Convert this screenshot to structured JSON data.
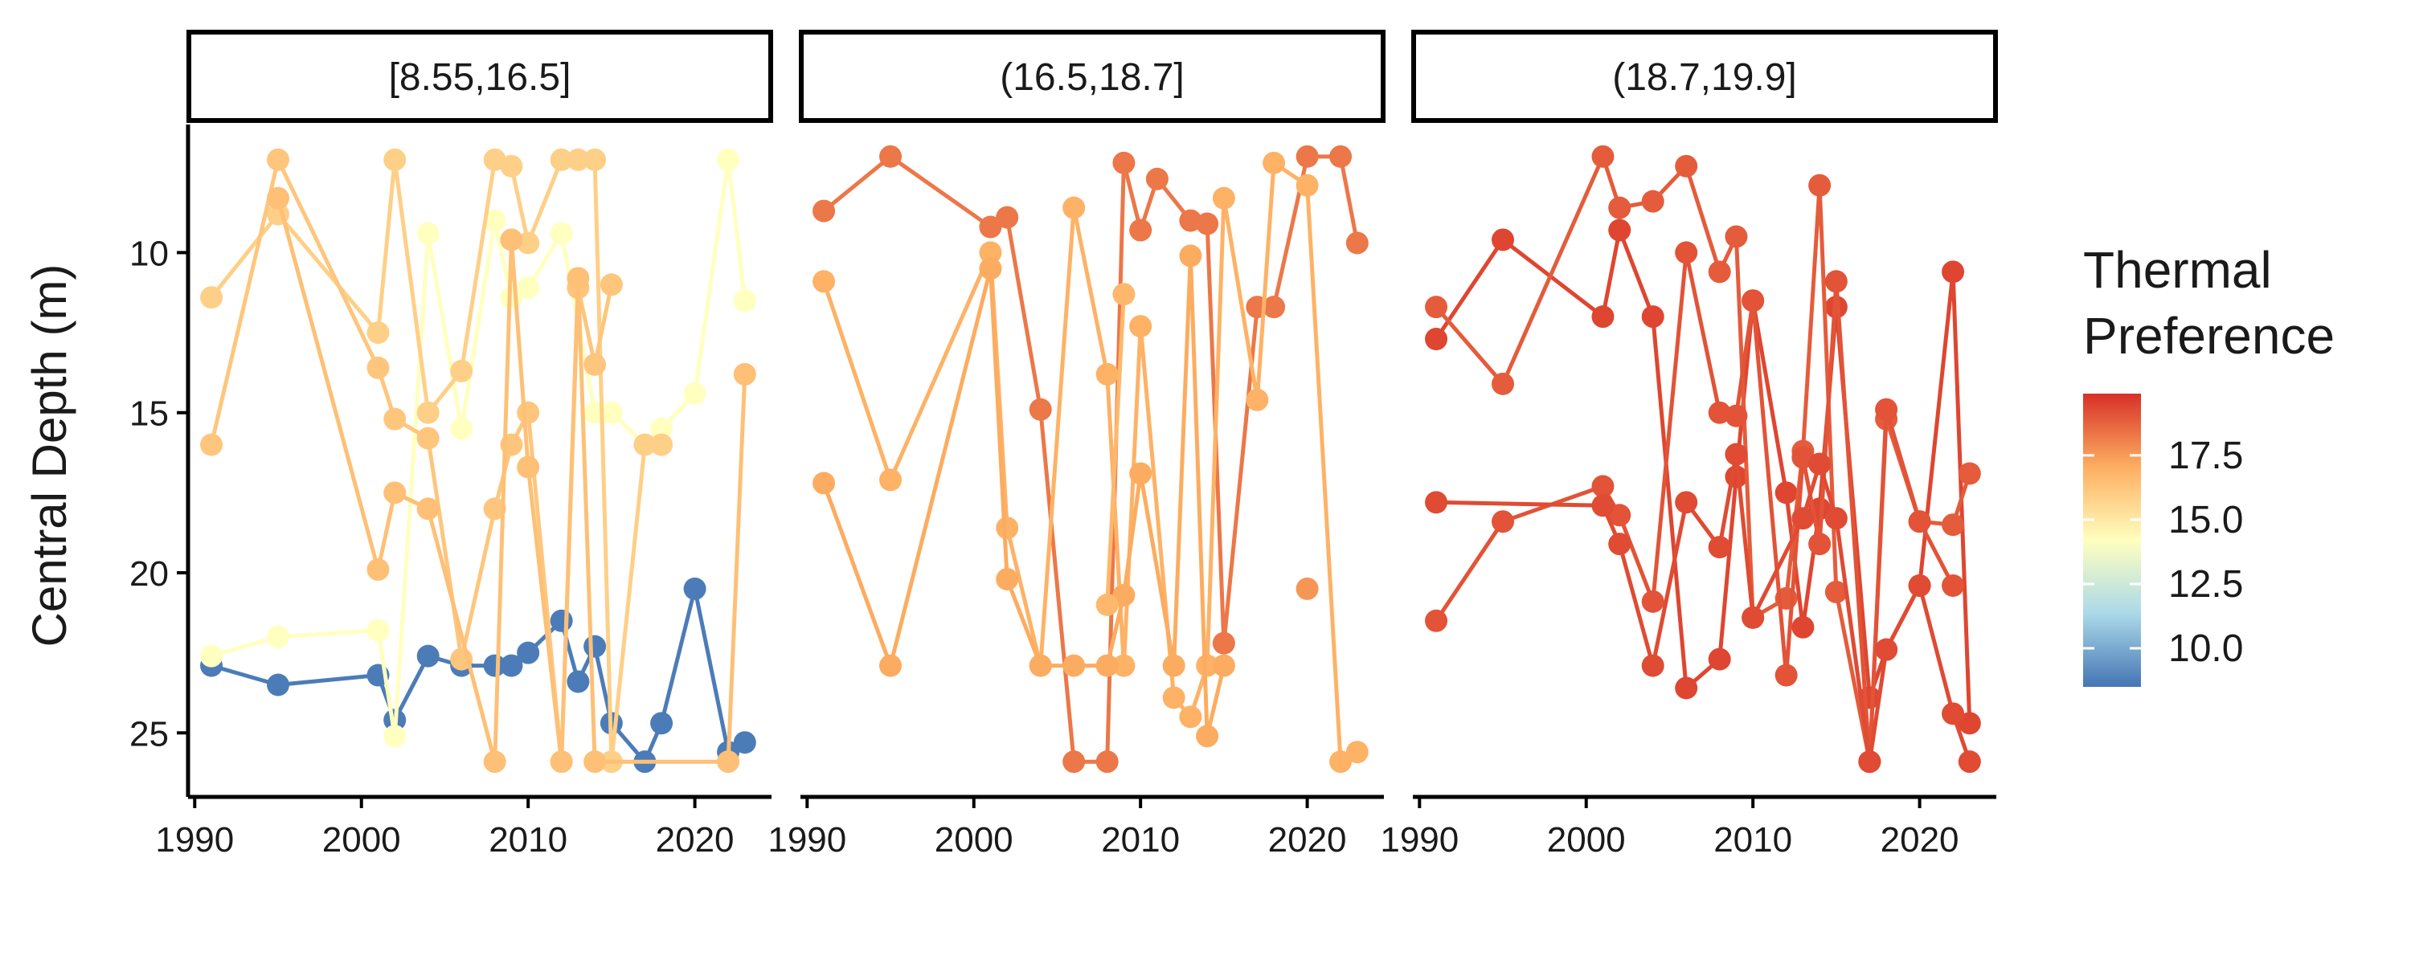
{
  "chart_data": {
    "type": "line",
    "xlabel": "",
    "ylabel": "Central Depth (m)",
    "y_reversed": true,
    "xlim": [
      1989.6,
      2024.6
    ],
    "ylim": [
      6.0,
      27.0
    ],
    "x_ticks": [
      1990,
      2000,
      2010,
      2020
    ],
    "x_tick_labels": [
      "1990",
      "2000",
      "2010",
      "2020"
    ],
    "y_ticks": [
      10,
      15,
      20,
      25
    ],
    "y_tick_labels": [
      "10",
      "15",
      "20",
      "25"
    ],
    "legend": {
      "title_lines": [
        "Thermal",
        "Preference"
      ],
      "type": "colorbar",
      "position": "right",
      "range": [
        8.5,
        19.9
      ],
      "ticks": [
        10.0,
        12.5,
        15.0,
        17.5
      ],
      "tick_labels": [
        "10.0",
        "12.5",
        "15.0",
        "17.5"
      ],
      "colors": [
        "#4575b4",
        "#abd9e9",
        "#ffffbf",
        "#fdae61",
        "#d73027"
      ]
    },
    "facets": [
      {
        "strip_label": "[8.55,16.5]",
        "series": [
          {
            "pref": 8.7,
            "x": [
              1991,
              1995,
              2001,
              2002,
              2004,
              2006,
              2008,
              2009,
              2010,
              2012,
              2013,
              2014,
              2015,
              2017,
              2018,
              2020,
              2022,
              2023
            ],
            "y": [
              22.9,
              23.5,
              23.2,
              24.6,
              22.6,
              22.9,
              22.9,
              22.9,
              22.5,
              21.5,
              23.4,
              22.3,
              24.7,
              25.9,
              24.7,
              20.5,
              25.6,
              25.3
            ]
          },
          {
            "pref": 14.2,
            "x": [
              1991,
              1995,
              2001,
              2002,
              2004,
              2006,
              2008,
              2009,
              2010,
              2012,
              2014,
              2015,
              2017,
              2018,
              2020,
              2022,
              2023
            ],
            "y": [
              22.6,
              22.0,
              21.8,
              25.1,
              9.4,
              15.5,
              9.0,
              11.4,
              11.1,
              9.4,
              15.0,
              15.0,
              16.0,
              15.5,
              14.4,
              7.1,
              11.5
            ]
          },
          {
            "pref": 15.9,
            "x": [
              1991,
              1995,
              2001,
              2002,
              2004,
              2006,
              2008,
              2009,
              2010,
              2012,
              2013,
              2014,
              2015,
              2017,
              2018
            ],
            "y": [
              11.4,
              8.8,
              12.5,
              7.1,
              15.0,
              13.7,
              7.1,
              7.3,
              9.7,
              7.1,
              7.1,
              7.1,
              25.9,
              16.0,
              16.0
            ]
          },
          {
            "pref": 16.2,
            "x": [
              1991,
              1995,
              2001,
              2002,
              2004,
              2006,
              2008,
              2009,
              2010,
              2012,
              2013,
              2014,
              2015
            ],
            "y": [
              16.0,
              7.1,
              13.6,
              15.2,
              15.8,
              22.7,
              18.0,
              16.0,
              15.0,
              25.9,
              11.1,
              13.5,
              11.0
            ]
          },
          {
            "pref": 16.4,
            "x": [
              1995,
              2001,
              2002,
              2004,
              2008,
              2009,
              2010,
              2012,
              2013,
              2014,
              2022,
              2023
            ],
            "y": [
              8.3,
              19.9,
              17.5,
              18.0,
              25.9,
              9.6,
              16.7,
              25.9,
              10.8,
              25.9,
              25.9,
              13.8
            ]
          }
        ]
      },
      {
        "strip_label": "(16.5,18.7]",
        "series": [
          {
            "pref": 18.3,
            "x": [
              1991,
              1995,
              2001,
              2002,
              2004,
              2006,
              2008,
              2009,
              2010,
              2011,
              2013,
              2014,
              2015,
              2017,
              2018,
              2020,
              2022,
              2023
            ],
            "y": [
              8.7,
              7.0,
              9.2,
              8.9,
              14.9,
              25.9,
              25.9,
              7.2,
              9.3,
              7.7,
              9.0,
              9.1,
              22.2,
              11.7,
              11.7,
              7.0,
              7.0,
              9.7
            ]
          },
          {
            "pref": 16.9,
            "x": [
              1991,
              1995,
              2001,
              2002,
              2004,
              2006,
              2008,
              2009,
              2010,
              2012,
              2013,
              2014,
              2015,
              2017,
              2018,
              2020,
              2022,
              2023
            ],
            "y": [
              10.9,
              17.1,
              10.0,
              18.6,
              22.9,
              8.6,
              13.8,
              22.9,
              12.3,
              23.9,
              24.5,
              22.9,
              8.3,
              14.6,
              7.2,
              7.9,
              25.9,
              25.6
            ]
          },
          {
            "pref": 17.1,
            "x": [
              1991,
              1995,
              2001,
              2002,
              2004,
              2006,
              2008,
              2009,
              2010,
              2012,
              2013,
              2014,
              2015
            ],
            "y": [
              17.2,
              22.9,
              10.5,
              20.2,
              22.9,
              22.9,
              22.9,
              20.7,
              16.9,
              22.9,
              10.1,
              25.1,
              22.9
            ]
          },
          {
            "pref": 16.7,
            "x": [
              2008,
              2009
            ],
            "y": [
              21.0,
              11.3
            ]
          },
          {
            "pref": 17.6,
            "x": [
              2020
            ],
            "y": [
              20.5
            ]
          }
        ]
      },
      {
        "strip_label": "(18.7,19.9]",
        "series": [
          {
            "pref": 19.4,
            "x": [
              1991,
              1995,
              2001,
              2002,
              2004,
              2006,
              2008,
              2009,
              2010,
              2012,
              2013,
              2014,
              2015,
              2017,
              2018,
              2020,
              2022,
              2023
            ],
            "y": [
              12.7,
              9.6,
              12.0,
              9.3,
              12.0,
              23.6,
              22.7,
              17.0,
              11.5,
              17.5,
              21.7,
              18.0,
              11.7,
              23.9,
              22.4,
              20.4,
              10.6,
              24.7
            ]
          },
          {
            "pref": 18.9,
            "x": [
              1991,
              1995,
              2001,
              2002,
              2004,
              2006,
              2008,
              2009,
              2010,
              2012,
              2013,
              2014,
              2015,
              2017,
              2018,
              2020,
              2022,
              2023
            ],
            "y": [
              11.7,
              14.1,
              7.0,
              8.6,
              8.4,
              7.3,
              10.6,
              9.5,
              21.4,
              20.8,
              16.2,
              7.9,
              20.6,
              25.9,
              15.2,
              18.4,
              18.5,
              16.9
            ]
          },
          {
            "pref": 19.1,
            "x": [
              1991,
              1995,
              2001,
              2002,
              2004,
              2006,
              2008,
              2009,
              2010,
              2012,
              2013,
              2014,
              2015,
              2017,
              2018,
              2020,
              2022
            ],
            "y": [
              21.5,
              18.4,
              17.3,
              18.2,
              20.9,
              10.0,
              15.0,
              15.1,
              11.5,
              23.2,
              16.4,
              19.1,
              10.9,
              25.9,
              14.9,
              18.4,
              20.4
            ]
          },
          {
            "pref": 19.3,
            "x": [
              1991,
              2001,
              2002,
              2004,
              2006,
              2008,
              2009,
              2010,
              2013,
              2014,
              2015,
              2017,
              2018,
              2020,
              2022,
              2023
            ],
            "y": [
              17.8,
              17.9,
              19.1,
              22.9,
              17.8,
              19.2,
              16.3,
              21.4,
              18.3,
              16.6,
              18.3,
              25.9,
              22.4,
              20.4,
              24.4,
              25.9
            ]
          }
        ]
      }
    ]
  }
}
